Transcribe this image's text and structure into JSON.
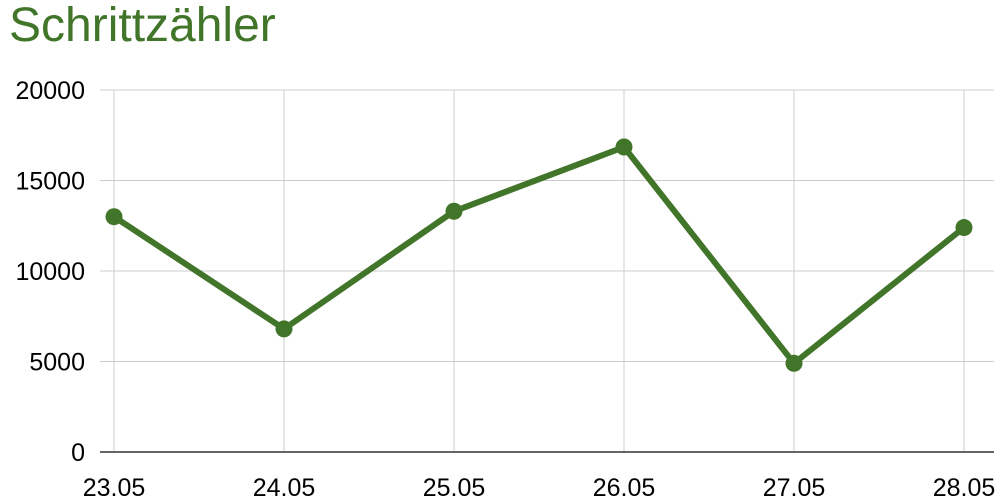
{
  "chart_data": {
    "type": "line",
    "title": "Schrittzähler",
    "xlabel": "",
    "ylabel": "",
    "categories": [
      "23.05",
      "24.05",
      "25.05",
      "26.05",
      "27.05",
      "28.05"
    ],
    "series": [
      {
        "values": [
          13000,
          6800,
          13300,
          16850,
          4900,
          12400
        ]
      }
    ],
    "ylim": [
      0,
      20000
    ],
    "yticks": [
      "0",
      "5000",
      "10000",
      "15000",
      "20000"
    ],
    "grid": true,
    "legend": "none"
  },
  "colors": {
    "title": "#417529",
    "line": "#417529",
    "marker": "#417529",
    "grid": "#cccccc",
    "axis": "#333333"
  }
}
